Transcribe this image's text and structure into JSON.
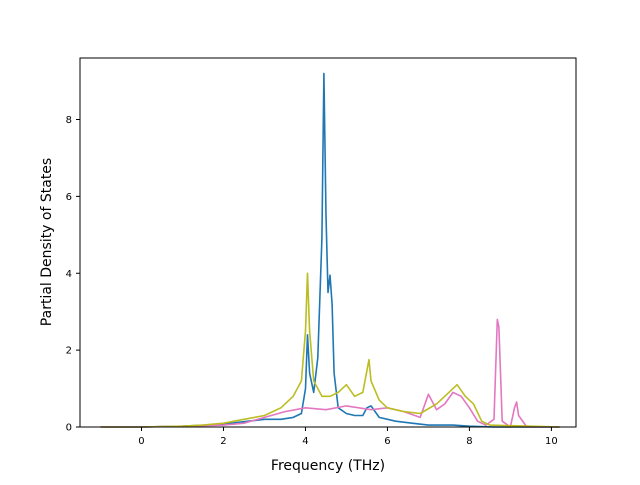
{
  "chart_data": {
    "type": "line",
    "xlabel": "Frequency (THz)",
    "ylabel": "Partial Density of States",
    "xlim": [
      -1.5,
      10.6
    ],
    "ylim": [
      0,
      9.6
    ],
    "xticks": [
      0,
      2,
      4,
      6,
      8,
      10
    ],
    "yticks": [
      0,
      2,
      4,
      6,
      8
    ],
    "grid": false,
    "legend": "none",
    "series": [
      {
        "color": "#1f77b4",
        "x": [
          -1.0,
          0.0,
          1.0,
          1.8,
          2.2,
          2.6,
          3.0,
          3.4,
          3.7,
          3.9,
          4.0,
          4.05,
          4.1,
          4.2,
          4.3,
          4.4,
          4.45,
          4.5,
          4.55,
          4.6,
          4.65,
          4.7,
          4.8,
          5.0,
          5.2,
          5.4,
          5.5,
          5.6,
          5.8,
          6.2,
          6.6,
          7.0,
          7.6,
          8.0,
          8.6,
          9.2,
          10.2
        ],
        "y": [
          0,
          0,
          0.02,
          0.06,
          0.1,
          0.15,
          0.2,
          0.2,
          0.25,
          0.35,
          1.0,
          2.4,
          1.4,
          0.9,
          1.8,
          4.9,
          9.2,
          5.5,
          3.5,
          3.95,
          3.2,
          1.4,
          0.5,
          0.35,
          0.3,
          0.3,
          0.5,
          0.55,
          0.25,
          0.15,
          0.1,
          0.05,
          0.05,
          0.02,
          0,
          0,
          0
        ]
      },
      {
        "color": "#e377c2",
        "x": [
          -1.0,
          0.0,
          1.0,
          2.0,
          2.5,
          3.0,
          3.5,
          4.0,
          4.5,
          5.0,
          5.3,
          5.6,
          6.0,
          6.4,
          6.8,
          7.0,
          7.2,
          7.4,
          7.6,
          7.8,
          8.0,
          8.2,
          8.4,
          8.6,
          8.68,
          8.72,
          8.8,
          9.0,
          9.1,
          9.15,
          9.2,
          9.4,
          10.2
        ],
        "y": [
          0,
          0,
          0.02,
          0.05,
          0.1,
          0.25,
          0.4,
          0.5,
          0.45,
          0.55,
          0.5,
          0.45,
          0.5,
          0.4,
          0.25,
          0.85,
          0.45,
          0.6,
          0.9,
          0.8,
          0.5,
          0.15,
          0.05,
          0.2,
          2.8,
          2.6,
          0.15,
          0,
          0.5,
          0.65,
          0.3,
          0,
          0
        ]
      },
      {
        "color": "#bcbd22",
        "x": [
          -1.0,
          0.0,
          1.0,
          1.5,
          2.0,
          2.5,
          3.0,
          3.4,
          3.7,
          3.9,
          4.0,
          4.05,
          4.1,
          4.2,
          4.4,
          4.6,
          4.8,
          5.0,
          5.2,
          5.4,
          5.55,
          5.6,
          5.8,
          6.0,
          6.4,
          6.8,
          7.2,
          7.5,
          7.7,
          7.9,
          8.1,
          8.3,
          8.5,
          10.2
        ],
        "y": [
          0,
          0,
          0.02,
          0.05,
          0.1,
          0.2,
          0.3,
          0.5,
          0.8,
          1.2,
          2.5,
          4.0,
          2.5,
          1.2,
          0.8,
          0.8,
          0.9,
          1.1,
          0.8,
          0.9,
          1.75,
          1.2,
          0.7,
          0.5,
          0.4,
          0.35,
          0.6,
          0.9,
          1.1,
          0.8,
          0.6,
          0.15,
          0.05,
          0
        ]
      }
    ]
  }
}
